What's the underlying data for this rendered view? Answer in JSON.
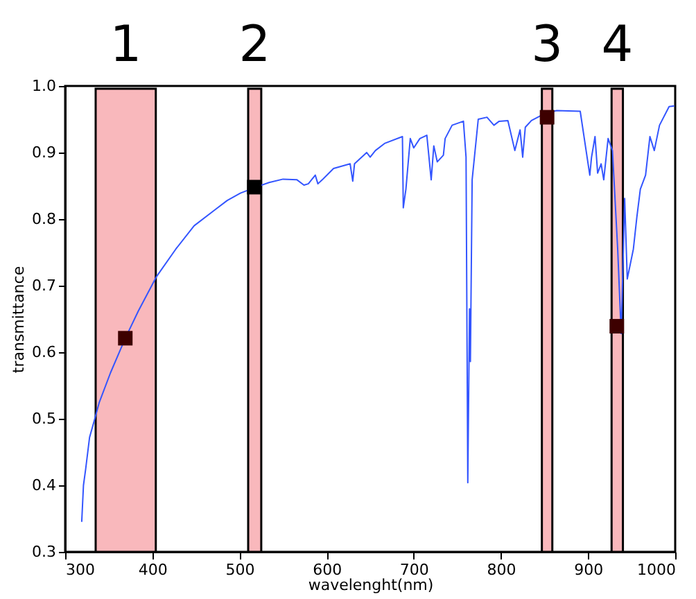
{
  "chart_data": {
    "type": "line",
    "xlabel": "wavelenght(nm)",
    "ylabel": "transmittance",
    "xlim": [
      300,
      1000
    ],
    "ylim": [
      0.3,
      1.0
    ],
    "xticks": [
      300,
      400,
      500,
      600,
      700,
      800,
      900,
      1000
    ],
    "yticks": [
      {
        "value": 0.3,
        "label": "0.3"
      },
      {
        "value": 0.4,
        "label": "0.4"
      },
      {
        "value": 0.5,
        "label": "0.5"
      },
      {
        "value": 0.6,
        "label": "0.6"
      },
      {
        "value": 0.7,
        "label": "0.7"
      },
      {
        "value": 0.8,
        "label": "0.8"
      },
      {
        "value": 0.9,
        "label": "0.9"
      },
      {
        "value": 1.0,
        "label": "1.0"
      }
    ],
    "grid": false,
    "bands": [
      {
        "axis": "x",
        "from": 335,
        "to": 404,
        "label": "1",
        "color": "#f9b8bc"
      },
      {
        "axis": "x",
        "from": 510,
        "to": 525,
        "label": "2",
        "color": "#f9b8bc"
      },
      {
        "axis": "x",
        "from": 847,
        "to": 859,
        "label": "3",
        "color": "#f9b8bc"
      },
      {
        "axis": "x",
        "from": 927,
        "to": 940,
        "label": "4",
        "color": "#f9b8bc"
      }
    ],
    "series": [
      {
        "color": "#3355ff",
        "marker": "none",
        "line_style": "solid",
        "x": [
          319,
          321,
          323.5,
          328,
          334,
          339,
          352,
          369,
          384,
          405,
          427,
          448,
          472,
          486,
          501,
          519,
          534,
          550,
          566,
          574,
          579,
          587,
          590,
          595,
          608,
          627,
          630,
          632,
          646,
          650,
          656,
          667,
          687,
          688,
          691,
          696,
          700,
          707,
          715,
          720,
          723,
          727,
          734,
          736,
          744,
          757,
          760,
          762,
          764,
          765,
          767,
          774,
          784,
          792,
          798,
          808,
          816,
          822,
          825,
          828,
          835,
          851,
          864,
          891,
          902,
          904,
          908,
          911,
          915,
          918,
          923,
          928,
          934,
          938,
          942,
          945,
          952,
          956,
          960,
          966,
          971,
          976,
          982,
          993,
          999
        ],
        "values": [
          0.345,
          0.4,
          0.424,
          0.472,
          0.5,
          0.524,
          0.569,
          0.621,
          0.662,
          0.714,
          0.755,
          0.79,
          0.814,
          0.828,
          0.839,
          0.848,
          0.855,
          0.86,
          0.859,
          0.851,
          0.853,
          0.866,
          0.853,
          0.859,
          0.876,
          0.883,
          0.857,
          0.883,
          0.9,
          0.893,
          0.903,
          0.914,
          0.924,
          0.817,
          0.845,
          0.921,
          0.907,
          0.921,
          0.926,
          0.859,
          0.91,
          0.886,
          0.896,
          0.921,
          0.941,
          0.947,
          0.893,
          0.404,
          0.665,
          0.586,
          0.859,
          0.95,
          0.953,
          0.941,
          0.947,
          0.948,
          0.903,
          0.934,
          0.893,
          0.938,
          0.948,
          0.959,
          0.963,
          0.962,
          0.866,
          0.893,
          0.924,
          0.869,
          0.883,
          0.859,
          0.921,
          0.903,
          0.755,
          0.628,
          0.831,
          0.71,
          0.755,
          0.803,
          0.845,
          0.866,
          0.924,
          0.903,
          0.941,
          0.969,
          0.97
        ]
      },
      {
        "type": "scatter",
        "marker": "square",
        "x": [
          369,
          517,
          853,
          933
        ],
        "values": [
          0.621,
          0.848,
          0.953,
          0.639
        ],
        "colors": [
          "#3d0000",
          "#000000",
          "#3d0000",
          "#3d0000"
        ]
      }
    ]
  }
}
